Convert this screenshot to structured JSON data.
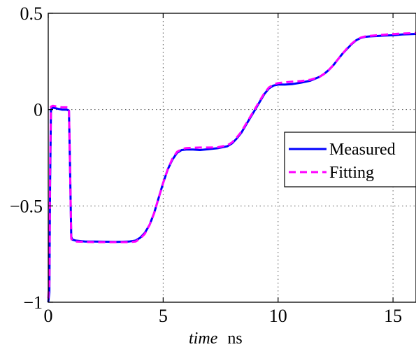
{
  "chart_data": {
    "type": "line",
    "title": "",
    "xlabel": {
      "italic": "time",
      "unit": "ns"
    },
    "ylabel": "",
    "xlim": [
      0,
      16
    ],
    "ylim": [
      -1,
      0.5
    ],
    "xticks": [
      "0",
      "5",
      "10",
      "15"
    ],
    "xtick_values": [
      0,
      5,
      10,
      15
    ],
    "yticks": [
      "−1",
      "−0.5",
      "0",
      "0.5"
    ],
    "ytick_values": [
      -1,
      -0.5,
      0,
      0.5
    ],
    "grid": true,
    "legend_position": "right",
    "series": [
      {
        "name": "Measured",
        "color": "#0000ff",
        "style": "solid",
        "x": [
          0,
          0.05,
          0.08,
          0.12,
          0.2,
          0.4,
          0.6,
          0.8,
          0.9,
          0.95,
          1.0,
          1.05,
          1.2,
          1.6,
          2.0,
          2.5,
          3.0,
          3.5,
          3.8,
          4.0,
          4.2,
          4.4,
          4.6,
          4.8,
          5.0,
          5.2,
          5.4,
          5.6,
          5.8,
          6.0,
          6.3,
          6.6,
          7.0,
          7.4,
          7.8,
          8.0,
          8.2,
          8.4,
          8.6,
          8.8,
          9.0,
          9.2,
          9.4,
          9.6,
          9.8,
          10.0,
          10.3,
          10.6,
          11.0,
          11.4,
          11.8,
          12.0,
          12.2,
          12.4,
          12.6,
          12.8,
          13.0,
          13.2,
          13.4,
          13.6,
          13.8,
          14.0,
          14.3,
          14.6,
          15.0,
          15.4,
          15.8,
          16.0
        ],
        "y": [
          -1.0,
          -0.95,
          -0.4,
          0.0,
          0.01,
          0.005,
          0.0,
          0.0,
          -0.005,
          -0.3,
          -0.66,
          -0.675,
          -0.68,
          -0.685,
          -0.685,
          -0.686,
          -0.687,
          -0.685,
          -0.68,
          -0.665,
          -0.64,
          -0.6,
          -0.54,
          -0.46,
          -0.38,
          -0.31,
          -0.26,
          -0.225,
          -0.21,
          -0.207,
          -0.207,
          -0.21,
          -0.205,
          -0.2,
          -0.19,
          -0.175,
          -0.15,
          -0.12,
          -0.08,
          -0.04,
          0.0,
          0.04,
          0.08,
          0.11,
          0.125,
          0.13,
          0.13,
          0.132,
          0.14,
          0.15,
          0.17,
          0.185,
          0.205,
          0.23,
          0.26,
          0.29,
          0.315,
          0.34,
          0.36,
          0.372,
          0.378,
          0.38,
          0.382,
          0.384,
          0.386,
          0.39,
          0.392,
          0.393
        ]
      },
      {
        "name": "Fitting",
        "color": "#ff00ff",
        "style": "dashed",
        "x": [
          0,
          0.05,
          0.08,
          0.12,
          0.2,
          0.4,
          0.6,
          0.8,
          0.9,
          0.95,
          1.0,
          1.05,
          1.2,
          1.6,
          2.0,
          2.5,
          3.0,
          3.5,
          3.8,
          4.0,
          4.2,
          4.4,
          4.6,
          4.8,
          5.0,
          5.2,
          5.4,
          5.6,
          5.8,
          6.0,
          6.3,
          6.6,
          7.0,
          7.4,
          7.8,
          8.0,
          8.2,
          8.4,
          8.6,
          8.8,
          9.0,
          9.2,
          9.4,
          9.6,
          9.8,
          10.0,
          10.3,
          10.6,
          11.0,
          11.4,
          11.8,
          12.0,
          12.2,
          12.4,
          12.6,
          12.8,
          13.0,
          13.2,
          13.4,
          13.6,
          13.8,
          14.0,
          14.3,
          14.6,
          15.0,
          15.4,
          15.8,
          16.0
        ],
        "y": [
          -0.98,
          -0.9,
          -0.3,
          0.015,
          0.02,
          0.015,
          0.012,
          0.012,
          0.01,
          -0.3,
          -0.67,
          -0.68,
          -0.685,
          -0.687,
          -0.688,
          -0.688,
          -0.688,
          -0.688,
          -0.685,
          -0.67,
          -0.645,
          -0.6,
          -0.54,
          -0.46,
          -0.38,
          -0.31,
          -0.255,
          -0.22,
          -0.205,
          -0.2,
          -0.198,
          -0.197,
          -0.197,
          -0.195,
          -0.185,
          -0.17,
          -0.145,
          -0.115,
          -0.075,
          -0.035,
          0.005,
          0.045,
          0.085,
          0.115,
          0.13,
          0.138,
          0.142,
          0.145,
          0.148,
          0.155,
          0.17,
          0.185,
          0.205,
          0.23,
          0.26,
          0.29,
          0.318,
          0.342,
          0.362,
          0.374,
          0.38,
          0.383,
          0.386,
          0.389,
          0.392,
          0.395,
          0.397,
          0.398
        ]
      }
    ]
  }
}
